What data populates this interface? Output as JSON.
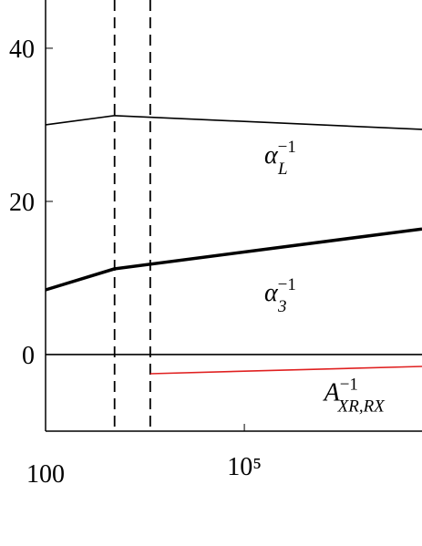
{
  "chart_data": {
    "type": "line",
    "log_x": true,
    "xlim": [
      100,
      48000000
    ],
    "ylim": [
      -10,
      46.3
    ],
    "xticks": [
      100,
      {
        "value": 100000,
        "label": "10⁵"
      }
    ],
    "yticks": [
      0,
      20,
      40
    ],
    "vlines": [
      1100,
      3800
    ],
    "hlines": [
      0
    ],
    "series": [
      {
        "name": "αL",
        "color": "#000000",
        "width": 1.6,
        "x": [
          100,
          1100,
          48000000
        ],
        "values": [
          30.0,
          31.2,
          29.4
        ]
      },
      {
        "name": "α3",
        "color": "#000000",
        "width": 3.5,
        "x": [
          100,
          1100,
          48000000
        ],
        "values": [
          8.45,
          11.2,
          16.4
        ]
      },
      {
        "name": "AXR,RX",
        "color": "#e02020",
        "width": 1.6,
        "x": [
          3800,
          48000000
        ],
        "values": [
          -2.5,
          -1.55
        ]
      }
    ],
    "annotations": [
      {
        "base": "α",
        "sub": "L",
        "sup": "−1",
        "x": 200000,
        "y": 25
      },
      {
        "base": "α",
        "sub": "3",
        "sup": "−1",
        "x": 200000,
        "y": 7
      },
      {
        "base": "A",
        "sub": "XR,RX",
        "sup": "−1",
        "x": 1600000,
        "y": -6
      }
    ]
  }
}
